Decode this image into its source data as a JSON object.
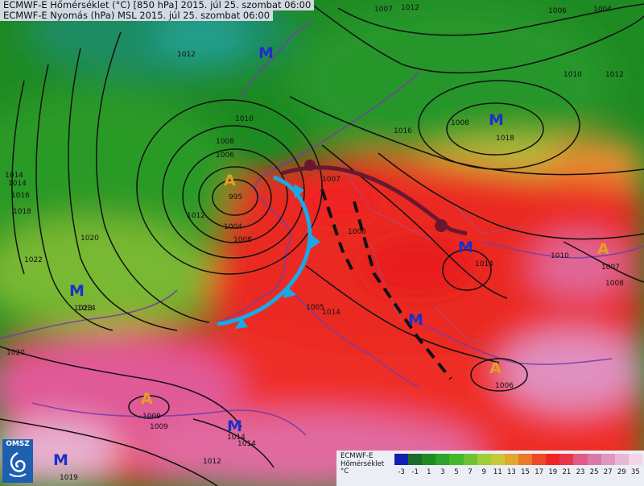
{
  "header": {
    "line1": "ECMWF-E Hőmérséklet (°C) [850 hPa] 2015. júl 25. szombat 06:00",
    "line2": "ECMWF-E Nyomás (hPa) MSL 2015. júl 25. szombat 06:00"
  },
  "pressure_centers": [
    {
      "label": "M",
      "value": "",
      "kind": "low",
      "color": "#1c2fc8"
    },
    {
      "label": "M",
      "value": "1018",
      "kind": "low",
      "color": "#1c2fc8"
    },
    {
      "label": "A",
      "value": "995",
      "kind": "high",
      "color": "#e6a020"
    },
    {
      "label": "M",
      "value": "1023",
      "kind": "low",
      "color": "#1c2fc8"
    },
    {
      "label": "M",
      "value": "1014",
      "kind": "low",
      "color": "#1c2fc8"
    },
    {
      "label": "A",
      "value": "1007",
      "kind": "high",
      "color": "#e6a020"
    },
    {
      "label": "M",
      "value": "",
      "kind": "low",
      "color": "#1c2fc8"
    },
    {
      "label": "A",
      "value": "1006",
      "kind": "high",
      "color": "#e6a020"
    },
    {
      "label": "A",
      "value": "1009",
      "kind": "high",
      "color": "#e6a020"
    },
    {
      "label": "M",
      "value": "1014",
      "kind": "low",
      "color": "#1c2fc8"
    },
    {
      "label": "M",
      "value": "1019",
      "kind": "low",
      "color": "#1c2fc8"
    },
    {
      "label": "M",
      "value": "",
      "kind": "low",
      "color": "#1c2fc8"
    }
  ],
  "isobar_labels": [
    "1007",
    "1006",
    "1004",
    "1012",
    "1012",
    "1010",
    "1008",
    "1006",
    "1016",
    "1014",
    "1018",
    "1012",
    "1014",
    "1016",
    "1022",
    "1020",
    "1010",
    "1008",
    "1006",
    "1010",
    "1008",
    "1020",
    "1012",
    "1014",
    "1009",
    "1012",
    "1007",
    "1004",
    "1008",
    "1005",
    "1014",
    "1014"
  ],
  "logo": {
    "text": "OMSZ"
  },
  "legend": {
    "title_lines": [
      "ECMWF-E",
      "Hőmérséklet",
      "°C"
    ],
    "ticks": [
      "-3",
      "-1",
      "1",
      "3",
      "5",
      "7",
      "9",
      "11",
      "13",
      "15",
      "17",
      "19",
      "21",
      "23",
      "25",
      "27",
      "29",
      "35"
    ],
    "colors": [
      "#1020b0",
      "#1c6a2c",
      "#208a20",
      "#2ea22a",
      "#46b62a",
      "#70c232",
      "#a0cc38",
      "#c8c838",
      "#e0a830",
      "#e87a28",
      "#ee4826",
      "#f02424",
      "#e8364a",
      "#e05a88",
      "#dc78a8",
      "#e096c0",
      "#e8b8d4",
      "#f2d6e6"
    ]
  },
  "colors": {
    "cold_front": "#1aa8e8",
    "warm_front": "#6a1830",
    "trough_line": "#111111",
    "isobar": "#111111",
    "coastline": "#7a3ca8"
  }
}
